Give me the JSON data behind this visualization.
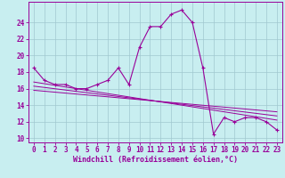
{
  "title": "",
  "xlabel": "Windchill (Refroidissement éolien,°C)",
  "ylabel": "",
  "bg_color": "#c8eef0",
  "grid_color": "#a0c8d0",
  "line_color": "#990099",
  "xlim": [
    -0.5,
    23.5
  ],
  "ylim": [
    9.5,
    26.5
  ],
  "xticks": [
    0,
    1,
    2,
    3,
    4,
    5,
    6,
    7,
    8,
    9,
    10,
    11,
    12,
    13,
    14,
    15,
    16,
    17,
    18,
    19,
    20,
    21,
    22,
    23
  ],
  "yticks": [
    10,
    12,
    14,
    16,
    18,
    20,
    22,
    24
  ],
  "main_data_x": [
    0,
    1,
    2,
    3,
    4,
    5,
    6,
    7,
    8,
    9,
    10,
    11,
    12,
    13,
    14,
    15,
    16,
    17,
    18,
    19,
    20,
    21,
    22,
    23
  ],
  "main_data_y": [
    18.5,
    17.0,
    16.5,
    16.5,
    16.0,
    16.0,
    16.5,
    17.0,
    18.5,
    16.5,
    21.0,
    23.5,
    23.5,
    25.0,
    25.5,
    24.0,
    18.5,
    10.5,
    12.5,
    12.0,
    12.5,
    12.5,
    12.0,
    11.0
  ],
  "trend_lines": [
    {
      "x": [
        0,
        23
      ],
      "y": [
        16.8,
        12.2
      ]
    },
    {
      "x": [
        0,
        23
      ],
      "y": [
        16.3,
        12.7
      ]
    },
    {
      "x": [
        0,
        23
      ],
      "y": [
        15.8,
        13.2
      ]
    }
  ],
  "font_size_tick": 5.5,
  "font_size_xlabel": 6.0
}
